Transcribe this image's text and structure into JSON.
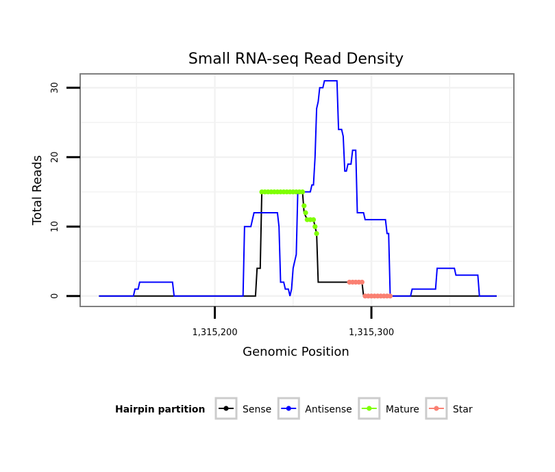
{
  "chart_data": {
    "type": "line",
    "title": "Small RNA-seq Read Density",
    "xlabel": "Genomic Position",
    "ylabel": "Total Reads",
    "xlim": [
      1315114,
      1315391
    ],
    "ylim": [
      -1.5,
      32
    ],
    "x_ticks": [
      1315200,
      1315300
    ],
    "x_tick_labels": [
      "1,315,200",
      "1,315,300"
    ],
    "y_ticks": [
      0,
      10,
      20,
      30
    ],
    "y_tick_labels": [
      "0",
      "10",
      "20",
      "30"
    ],
    "grid": true,
    "legend": {
      "title": "Hairpin partition",
      "position": "bottom",
      "entries": [
        {
          "label": "Sense",
          "color": "#000000"
        },
        {
          "label": "Antisense",
          "color": "#0000ff"
        },
        {
          "label": "Mature",
          "color": "#7fff00"
        },
        {
          "label": "Star",
          "color": "#fa8072"
        }
      ]
    },
    "series": [
      {
        "name": "Sense",
        "color": "#000000",
        "style": "line",
        "points": [
          [
            1315126,
            0
          ],
          [
            1315226,
            0
          ],
          [
            1315227,
            4
          ],
          [
            1315229,
            4
          ],
          [
            1315230,
            15
          ],
          [
            1315256,
            15
          ],
          [
            1315257,
            12
          ],
          [
            1315259,
            11
          ],
          [
            1315263,
            11
          ],
          [
            1315265,
            9
          ],
          [
            1315266,
            2
          ],
          [
            1315284,
            2
          ],
          [
            1315285,
            2
          ],
          [
            1315294,
            2
          ],
          [
            1315295,
            0
          ],
          [
            1315380,
            0
          ]
        ]
      },
      {
        "name": "Antisense",
        "color": "#0000ff",
        "style": "line",
        "points": [
          [
            1315126,
            0
          ],
          [
            1315148,
            0
          ],
          [
            1315149,
            1
          ],
          [
            1315151,
            1
          ],
          [
            1315152,
            2
          ],
          [
            1315163,
            2
          ],
          [
            1315173,
            2
          ],
          [
            1315174,
            0
          ],
          [
            1315218,
            0
          ],
          [
            1315219,
            10
          ],
          [
            1315223,
            10
          ],
          [
            1315224,
            11
          ],
          [
            1315225,
            12
          ],
          [
            1315240,
            12
          ],
          [
            1315241,
            10
          ],
          [
            1315242,
            2
          ],
          [
            1315244,
            2
          ],
          [
            1315245,
            1
          ],
          [
            1315247,
            1
          ],
          [
            1315248,
            0
          ],
          [
            1315249,
            1
          ],
          [
            1315250,
            4
          ],
          [
            1315252,
            6
          ],
          [
            1315253,
            15
          ],
          [
            1315261,
            15
          ],
          [
            1315262,
            16
          ],
          [
            1315263,
            16
          ],
          [
            1315264,
            20
          ],
          [
            1315265,
            27
          ],
          [
            1315266,
            28
          ],
          [
            1315267,
            30
          ],
          [
            1315269,
            30
          ],
          [
            1315270,
            31
          ],
          [
            1315278,
            31
          ],
          [
            1315279,
            24
          ],
          [
            1315281,
            24
          ],
          [
            1315282,
            23
          ],
          [
            1315283,
            18
          ],
          [
            1315284,
            18
          ],
          [
            1315285,
            19
          ],
          [
            1315287,
            19
          ],
          [
            1315288,
            21
          ],
          [
            1315290,
            21
          ],
          [
            1315291,
            12
          ],
          [
            1315295,
            12
          ],
          [
            1315296,
            11
          ],
          [
            1315309,
            11
          ],
          [
            1315310,
            9
          ],
          [
            1315311,
            9
          ],
          [
            1315312,
            0
          ],
          [
            1315325,
            0
          ],
          [
            1315326,
            1
          ],
          [
            1315341,
            1
          ],
          [
            1315342,
            4
          ],
          [
            1315353,
            4
          ],
          [
            1315354,
            3
          ],
          [
            1315368,
            3
          ],
          [
            1315369,
            0
          ],
          [
            1315380,
            0
          ]
        ]
      },
      {
        "name": "Mature",
        "color": "#7fff00",
        "style": "points",
        "points": [
          [
            1315230,
            15
          ],
          [
            1315232,
            15
          ],
          [
            1315234,
            15
          ],
          [
            1315236,
            15
          ],
          [
            1315238,
            15
          ],
          [
            1315240,
            15
          ],
          [
            1315242,
            15
          ],
          [
            1315244,
            15
          ],
          [
            1315246,
            15
          ],
          [
            1315248,
            15
          ],
          [
            1315250,
            15
          ],
          [
            1315252,
            15
          ],
          [
            1315254,
            15
          ],
          [
            1315256,
            15
          ],
          [
            1315257,
            13
          ],
          [
            1315258,
            12
          ],
          [
            1315259,
            11
          ],
          [
            1315261,
            11
          ],
          [
            1315263,
            11
          ],
          [
            1315264,
            10
          ],
          [
            1315265,
            9
          ]
        ]
      },
      {
        "name": "Star",
        "color": "#fa8072",
        "style": "points",
        "points": [
          [
            1315286,
            2
          ],
          [
            1315288,
            2
          ],
          [
            1315290,
            2
          ],
          [
            1315292,
            2
          ],
          [
            1315294,
            2
          ],
          [
            1315296,
            0
          ],
          [
            1315298,
            0
          ],
          [
            1315300,
            0
          ],
          [
            1315302,
            0
          ],
          [
            1315304,
            0
          ],
          [
            1315306,
            0
          ],
          [
            1315308,
            0
          ],
          [
            1315310,
            0
          ],
          [
            1315312,
            0
          ]
        ]
      }
    ]
  }
}
